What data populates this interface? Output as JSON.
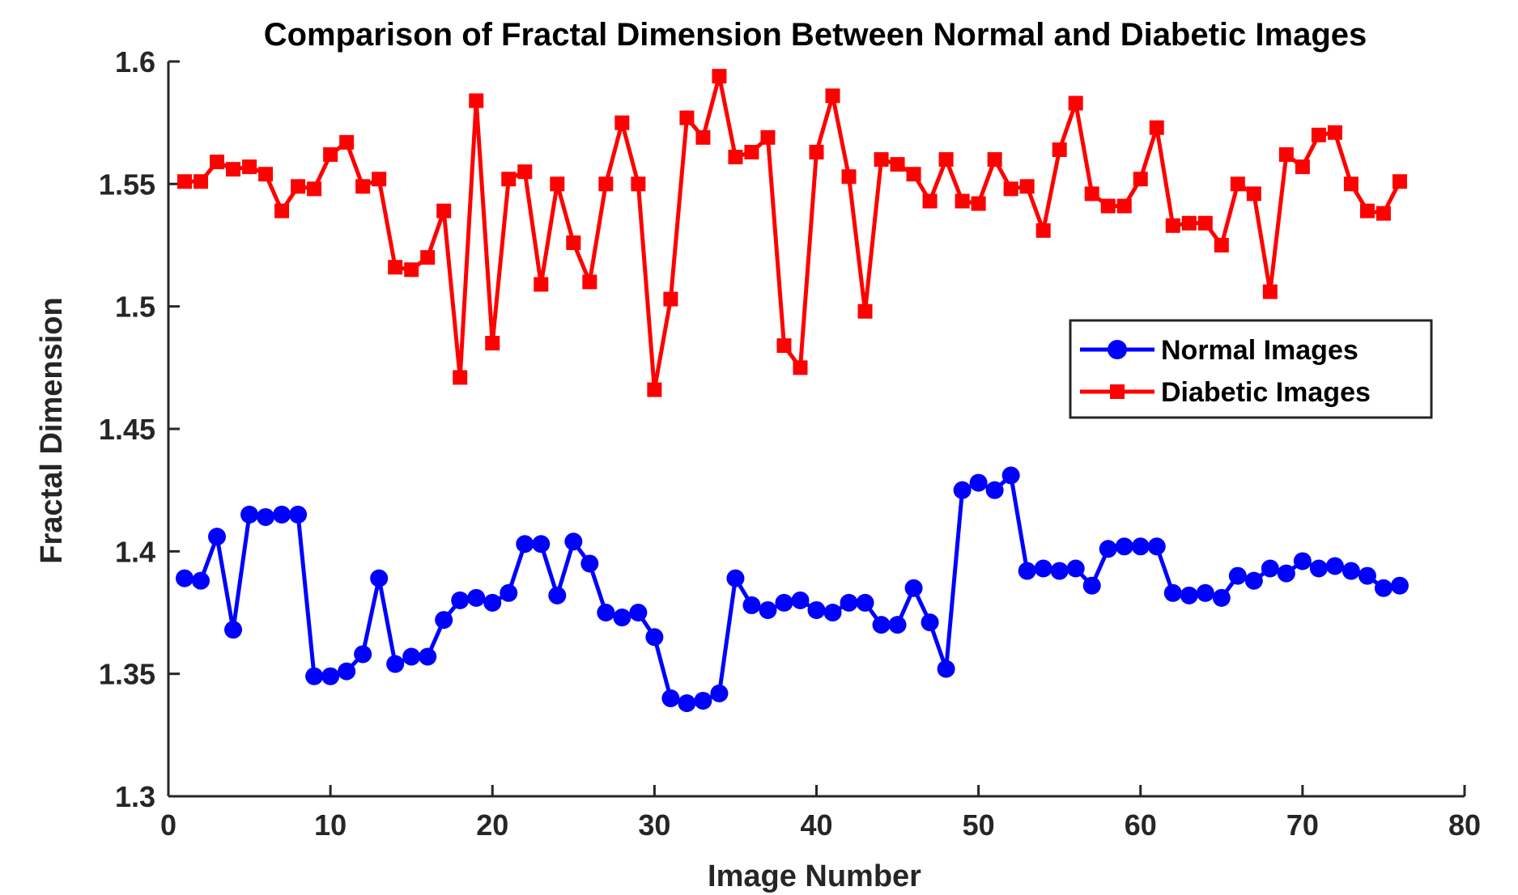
{
  "chart_data": {
    "type": "line",
    "title": "Comparison of Fractal Dimension Between Normal and Diabetic Images",
    "xlabel": "Image Number",
    "ylabel": "Fractal Dimension",
    "xlim": [
      0,
      80
    ],
    "ylim": [
      1.3,
      1.6
    ],
    "xticks": [
      0,
      10,
      20,
      30,
      40,
      50,
      60,
      70,
      80
    ],
    "yticks": [
      1.3,
      1.35,
      1.4,
      1.45,
      1.5,
      1.55,
      1.6
    ],
    "xtick_labels": [
      "0",
      "10",
      "20",
      "30",
      "40",
      "50",
      "60",
      "70",
      "80"
    ],
    "ytick_labels": [
      "1.3",
      "1.35",
      "1.4",
      "1.45",
      "1.5",
      "1.55",
      "1.6"
    ],
    "grid": false,
    "legend_position": "right",
    "x": [
      1,
      2,
      3,
      4,
      5,
      6,
      7,
      8,
      9,
      10,
      11,
      12,
      13,
      14,
      15,
      16,
      17,
      18,
      19,
      20,
      21,
      22,
      23,
      24,
      25,
      26,
      27,
      28,
      29,
      30,
      31,
      32,
      33,
      34,
      35,
      36,
      37,
      38,
      39,
      40,
      41,
      42,
      43,
      44,
      45,
      46,
      47,
      48,
      49,
      50,
      51,
      52,
      53,
      54,
      55,
      56,
      57,
      58,
      59,
      60,
      61,
      62,
      63,
      64,
      65,
      66,
      67,
      68,
      69,
      70,
      71,
      72,
      73,
      74,
      75,
      76
    ],
    "series": [
      {
        "name": "Normal Images",
        "color": "#0000ff",
        "marker": "circle",
        "values": [
          1.389,
          1.388,
          1.406,
          1.368,
          1.415,
          1.414,
          1.415,
          1.415,
          1.349,
          1.349,
          1.351,
          1.358,
          1.389,
          1.354,
          1.357,
          1.357,
          1.372,
          1.38,
          1.381,
          1.379,
          1.383,
          1.403,
          1.403,
          1.382,
          1.404,
          1.395,
          1.375,
          1.373,
          1.375,
          1.365,
          1.34,
          1.338,
          1.339,
          1.342,
          1.389,
          1.378,
          1.376,
          1.379,
          1.38,
          1.376,
          1.375,
          1.379,
          1.379,
          1.37,
          1.37,
          1.385,
          1.371,
          1.352,
          1.425,
          1.428,
          1.425,
          1.431,
          1.392,
          1.393,
          1.392,
          1.393,
          1.386,
          1.401,
          1.402,
          1.402,
          1.402,
          1.383,
          1.382,
          1.383,
          1.381,
          1.39,
          1.388,
          1.393,
          1.391,
          1.396,
          1.393,
          1.394,
          1.392,
          1.39,
          1.385,
          1.386
        ]
      },
      {
        "name": "Diabetic Images",
        "color": "#ff0000",
        "marker": "square",
        "values": [
          1.551,
          1.551,
          1.559,
          1.556,
          1.557,
          1.554,
          1.539,
          1.549,
          1.548,
          1.562,
          1.567,
          1.549,
          1.552,
          1.516,
          1.515,
          1.52,
          1.539,
          1.471,
          1.584,
          1.485,
          1.552,
          1.555,
          1.509,
          1.55,
          1.526,
          1.51,
          1.55,
          1.575,
          1.55,
          1.466,
          1.503,
          1.577,
          1.569,
          1.594,
          1.561,
          1.563,
          1.569,
          1.484,
          1.475,
          1.563,
          1.586,
          1.553,
          1.498,
          1.56,
          1.558,
          1.554,
          1.543,
          1.56,
          1.543,
          1.542,
          1.56,
          1.548,
          1.549,
          1.531,
          1.564,
          1.583,
          1.546,
          1.541,
          1.541,
          1.552,
          1.573,
          1.533,
          1.534,
          1.534,
          1.525,
          1.55,
          1.546,
          1.506,
          1.562,
          1.557,
          1.57,
          1.571,
          1.55,
          1.539,
          1.538,
          1.551
        ]
      }
    ]
  }
}
